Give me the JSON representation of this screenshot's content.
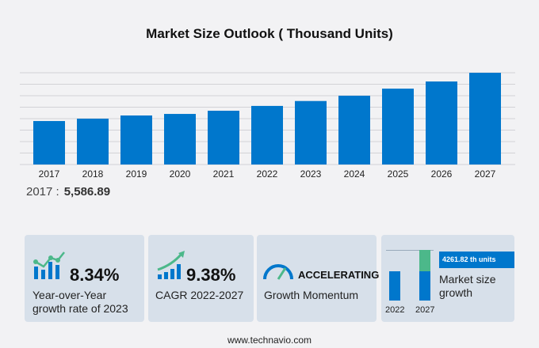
{
  "title": "Market Size Outlook   ( Thousand Units)",
  "chart_data": {
    "type": "bar",
    "title": "Market Size Outlook   ( Thousand Units)",
    "categories": [
      "2017",
      "2018",
      "2019",
      "2020",
      "2021",
      "2022",
      "2023",
      "2024",
      "2025",
      "2026",
      "2027"
    ],
    "values": [
      5586.89,
      5890,
      6300,
      6500,
      6910,
      7530,
      8160,
      8840,
      9750,
      10670,
      11790
    ],
    "ylim": [
      0,
      11790
    ],
    "grid": true,
    "color": "#0077cc"
  },
  "first_value": {
    "label": "2017 :",
    "value": "5,586.89"
  },
  "cards": {
    "yoy": {
      "value": "8.34%",
      "label1": "Year-over-Year",
      "label2": "growth rate of 2023"
    },
    "cagr": {
      "value": "9.38%",
      "label": "CAGR  2022-2027"
    },
    "momentum": {
      "value": "ACCELERATING",
      "label": "Growth Momentum"
    },
    "growth": {
      "badge": "4261.82 th units",
      "label1": "Market size",
      "label2": "growth",
      "year1": "2022",
      "year2": "2027"
    }
  },
  "footer": "www.technavio.com"
}
